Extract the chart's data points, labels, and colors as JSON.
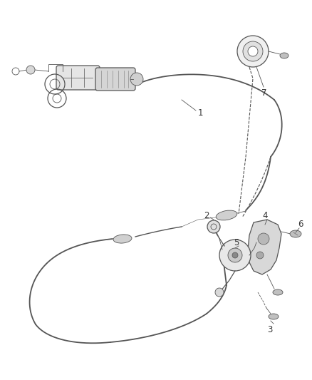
{
  "bg_color": "#ffffff",
  "line_color": "#555555",
  "label_color": "#333333",
  "fig_width": 4.38,
  "fig_height": 5.33,
  "dpi": 100,
  "label_fontsize": 8.5,
  "lw_cable": 1.3,
  "lw_part": 0.9,
  "lw_thin": 0.6,
  "lw_dashed": 0.8
}
